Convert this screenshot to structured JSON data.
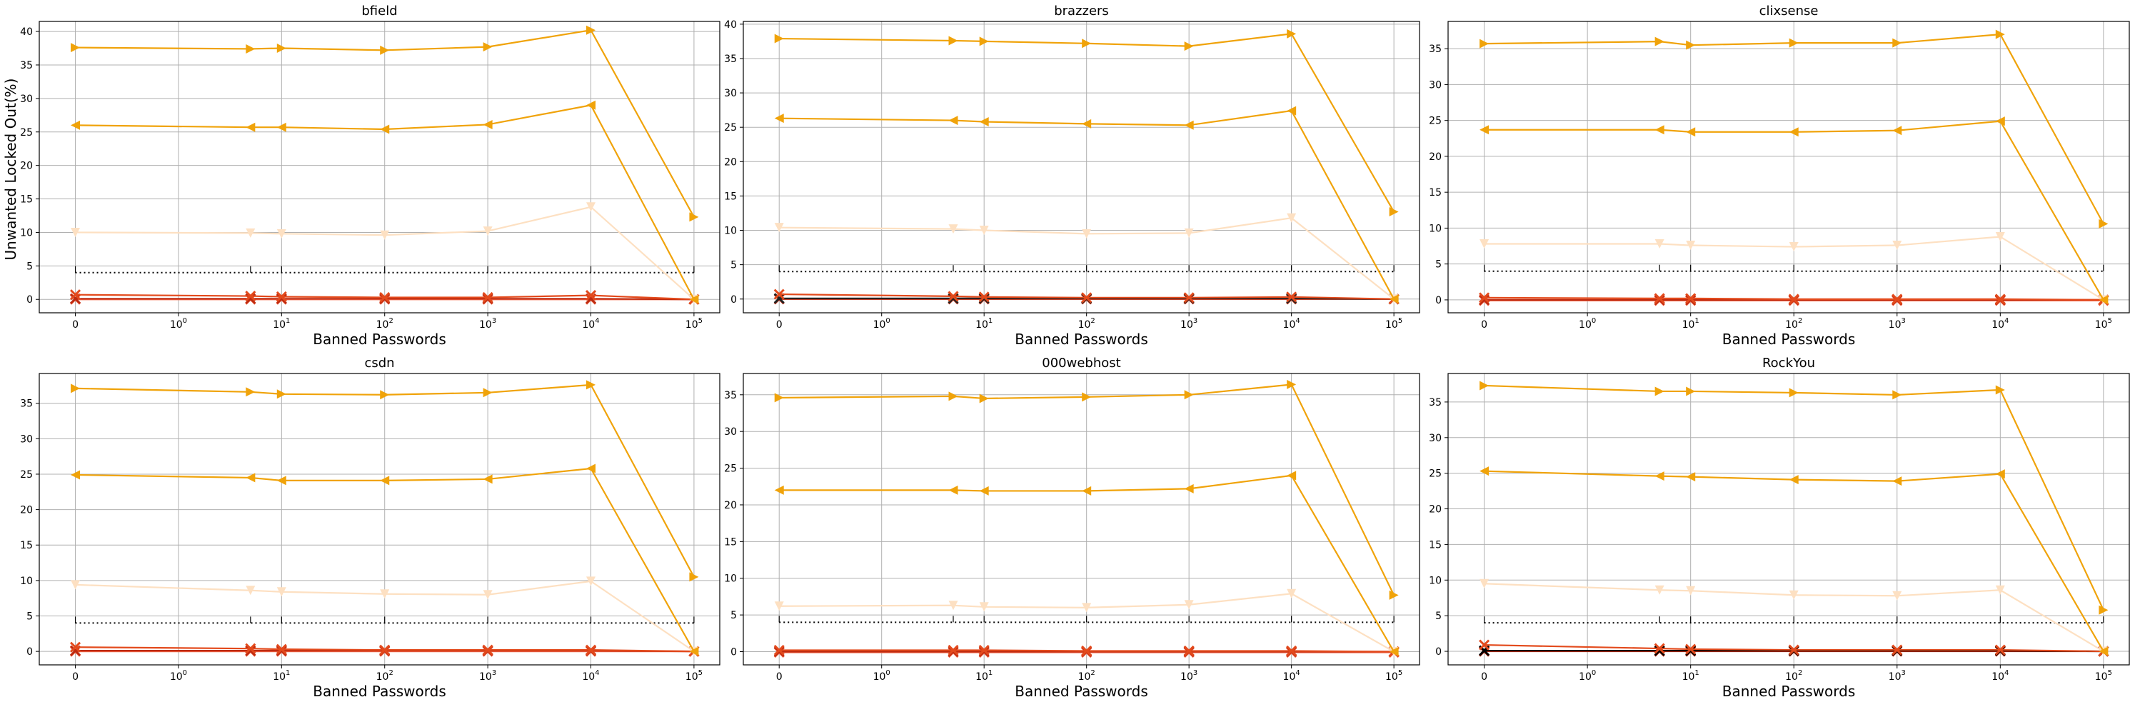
{
  "figure": {
    "ylabel": "Unwanted Locked Out(%)",
    "xlabel": "Banned Passwords"
  },
  "x_tick_labels": [
    "0",
    "10^0",
    "10^1",
    "10^2",
    "10^3",
    "10^4",
    "10^5"
  ],
  "chart_data": [
    {
      "type": "line",
      "title": "bfield",
      "xlabel": "Banned Passwords",
      "ylabel": "Unwanted Locked Out(%)",
      "xscale": "symlog",
      "x": [
        0,
        5,
        10,
        100,
        1000,
        10000,
        100000
      ],
      "ylim": [
        -2,
        41.5
      ],
      "yticks": [
        0,
        5,
        10,
        15,
        20,
        25,
        30,
        35,
        40
      ],
      "grid": true,
      "reference_line": {
        "y": 4,
        "style": "dotted",
        "color": "#000000"
      },
      "series": [
        {
          "values": [
            37.6,
            37.4,
            37.5,
            37.2,
            37.7,
            40.2,
            12.3
          ],
          "color": "#f0a30a",
          "marker": "triangle-right"
        },
        {
          "values": [
            26.0,
            25.7,
            25.7,
            25.4,
            26.1,
            29.0,
            0.0
          ],
          "color": "#f0a30a",
          "marker": "triangle-left"
        },
        {
          "values": [
            10.0,
            9.9,
            9.8,
            9.6,
            10.2,
            13.8,
            0.0
          ],
          "color": "#fde0c2",
          "marker": "triangle-down"
        },
        {
          "values": [
            0.7,
            0.5,
            0.4,
            0.3,
            0.3,
            0.6,
            0.0
          ],
          "color": "#e34a1c",
          "marker": "x"
        },
        {
          "values": [
            0.1,
            0.1,
            0.1,
            0.1,
            0.1,
            0.1,
            0.0
          ],
          "color": "#bd2a10",
          "marker": "x"
        },
        {
          "values": [
            0.0,
            0.0,
            0.0,
            0.0,
            0.0,
            0.0,
            0.0
          ],
          "color": "#f46a4a",
          "marker": "x"
        }
      ]
    },
    {
      "type": "line",
      "title": "brazzers",
      "xlabel": "Banned Passwords",
      "ylabel": "",
      "xscale": "symlog",
      "x": [
        0,
        5,
        10,
        100,
        1000,
        10000,
        100000
      ],
      "ylim": [
        -2,
        40.4
      ],
      "yticks": [
        0,
        5,
        10,
        15,
        20,
        25,
        30,
        35,
        40
      ],
      "grid": true,
      "reference_line": {
        "y": 4,
        "style": "dotted",
        "color": "#000000"
      },
      "series": [
        {
          "values": [
            37.9,
            37.6,
            37.5,
            37.2,
            36.8,
            38.6,
            12.7
          ],
          "color": "#f0a30a",
          "marker": "triangle-right"
        },
        {
          "values": [
            26.3,
            26.0,
            25.8,
            25.5,
            25.3,
            27.4,
            0.0
          ],
          "color": "#f0a30a",
          "marker": "triangle-left"
        },
        {
          "values": [
            10.4,
            10.2,
            10.0,
            9.5,
            9.6,
            11.8,
            0.0
          ],
          "color": "#fde0c2",
          "marker": "triangle-down"
        },
        {
          "values": [
            0.7,
            0.4,
            0.3,
            0.2,
            0.2,
            0.3,
            0.0
          ],
          "color": "#e34a1c",
          "marker": "x"
        },
        {
          "values": [
            0.1,
            0.1,
            0.1,
            0.1,
            0.1,
            0.1,
            0.0
          ],
          "color": "#222222",
          "marker": "x"
        },
        {
          "values": [
            0.0,
            0.0,
            0.0,
            0.0,
            0.0,
            0.0,
            0.0
          ],
          "color": "#bd2a10",
          "marker": "x"
        }
      ]
    },
    {
      "type": "line",
      "title": "clixsense",
      "xlabel": "Banned Passwords",
      "ylabel": "",
      "xscale": "symlog",
      "x": [
        0,
        5,
        10,
        100,
        1000,
        10000,
        100000
      ],
      "ylim": [
        -1.8,
        38.8
      ],
      "yticks": [
        0,
        5,
        10,
        15,
        20,
        25,
        30,
        35
      ],
      "grid": true,
      "reference_line": {
        "y": 4,
        "style": "dotted",
        "color": "#000000"
      },
      "series": [
        {
          "values": [
            35.7,
            36.0,
            35.5,
            35.8,
            35.8,
            37.0,
            10.6
          ],
          "color": "#f0a30a",
          "marker": "triangle-right"
        },
        {
          "values": [
            23.7,
            23.7,
            23.4,
            23.4,
            23.6,
            24.9,
            0.0
          ],
          "color": "#f0a30a",
          "marker": "triangle-left"
        },
        {
          "values": [
            7.8,
            7.8,
            7.6,
            7.4,
            7.6,
            8.8,
            0.0
          ],
          "color": "#fde0c2",
          "marker": "triangle-down"
        },
        {
          "values": [
            0.3,
            0.2,
            0.2,
            0.1,
            0.1,
            0.1,
            0.0
          ],
          "color": "#e34a1c",
          "marker": "x"
        },
        {
          "values": [
            0.0,
            0.0,
            0.0,
            0.0,
            0.0,
            0.0,
            0.0
          ],
          "color": "#bd2a10",
          "marker": "x"
        },
        {
          "values": [
            -0.1,
            -0.1,
            -0.1,
            -0.1,
            -0.1,
            -0.1,
            -0.1
          ],
          "color": "#f46a4a",
          "marker": "x"
        }
      ]
    },
    {
      "type": "line",
      "title": "csdn",
      "xlabel": "Banned Passwords",
      "ylabel": "",
      "xscale": "symlog",
      "x": [
        0,
        5,
        10,
        100,
        1000,
        10000,
        100000
      ],
      "ylim": [
        -1.9,
        39.2
      ],
      "yticks": [
        0,
        5,
        10,
        15,
        20,
        25,
        30,
        35
      ],
      "grid": true,
      "reference_line": {
        "y": 4,
        "style": "dotted",
        "color": "#000000"
      },
      "series": [
        {
          "values": [
            37.1,
            36.6,
            36.3,
            36.2,
            36.5,
            37.6,
            10.5
          ],
          "color": "#f0a30a",
          "marker": "triangle-right"
        },
        {
          "values": [
            24.9,
            24.5,
            24.1,
            24.1,
            24.3,
            25.8,
            0.0
          ],
          "color": "#f0a30a",
          "marker": "triangle-left"
        },
        {
          "values": [
            9.4,
            8.6,
            8.4,
            8.1,
            8.0,
            9.9,
            0.0
          ],
          "color": "#fde0c2",
          "marker": "triangle-down"
        },
        {
          "values": [
            0.6,
            0.4,
            0.3,
            0.2,
            0.2,
            0.2,
            0.0
          ],
          "color": "#e34a1c",
          "marker": "x"
        },
        {
          "values": [
            0.1,
            0.1,
            0.1,
            0.1,
            0.1,
            0.1,
            0.0
          ],
          "color": "#bd2a10",
          "marker": "x"
        },
        {
          "values": [
            0.0,
            0.0,
            0.0,
            0.0,
            0.0,
            0.0,
            0.0
          ],
          "color": "#f46a4a",
          "marker": "x"
        }
      ]
    },
    {
      "type": "line",
      "title": "000webhost",
      "xlabel": "Banned Passwords",
      "ylabel": "",
      "xscale": "symlog",
      "x": [
        0,
        5,
        10,
        100,
        1000,
        10000,
        100000
      ],
      "ylim": [
        -1.8,
        37.9
      ],
      "yticks": [
        0,
        5,
        10,
        15,
        20,
        25,
        30,
        35
      ],
      "grid": true,
      "reference_line": {
        "y": 4,
        "style": "dotted",
        "color": "#000000"
      },
      "series": [
        {
          "values": [
            34.6,
            34.8,
            34.5,
            34.7,
            35.0,
            36.4,
            7.7
          ],
          "color": "#f0a30a",
          "marker": "triangle-right"
        },
        {
          "values": [
            22.0,
            22.0,
            21.9,
            21.9,
            22.2,
            24.0,
            0.0
          ],
          "color": "#f0a30a",
          "marker": "triangle-left"
        },
        {
          "values": [
            6.2,
            6.3,
            6.1,
            6.0,
            6.4,
            7.9,
            0.0
          ],
          "color": "#fde0c2",
          "marker": "triangle-down"
        },
        {
          "values": [
            0.2,
            0.2,
            0.2,
            0.1,
            0.1,
            0.1,
            0.0
          ],
          "color": "#e34a1c",
          "marker": "x"
        },
        {
          "values": [
            0.0,
            0.0,
            0.0,
            0.0,
            0.0,
            0.0,
            0.0
          ],
          "color": "#bd2a10",
          "marker": "x"
        },
        {
          "values": [
            -0.1,
            -0.1,
            -0.1,
            -0.1,
            -0.1,
            -0.1,
            -0.1
          ],
          "color": "#f46a4a",
          "marker": "x"
        }
      ]
    },
    {
      "type": "line",
      "title": "RockYou",
      "xlabel": "Banned Passwords",
      "ylabel": "",
      "xscale": "symlog",
      "x": [
        0,
        5,
        10,
        100,
        1000,
        10000,
        100000
      ],
      "ylim": [
        -1.9,
        39.0
      ],
      "yticks": [
        0,
        5,
        10,
        15,
        20,
        25,
        30,
        35
      ],
      "grid": true,
      "reference_line": {
        "y": 4,
        "style": "dotted",
        "color": "#000000"
      },
      "series": [
        {
          "values": [
            37.3,
            36.5,
            36.5,
            36.3,
            36.0,
            36.7,
            5.8
          ],
          "color": "#f0a30a",
          "marker": "triangle-right"
        },
        {
          "values": [
            25.3,
            24.6,
            24.5,
            24.1,
            23.9,
            24.9,
            0.0
          ],
          "color": "#f0a30a",
          "marker": "triangle-left"
        },
        {
          "values": [
            9.5,
            8.6,
            8.5,
            7.9,
            7.8,
            8.6,
            0.0
          ],
          "color": "#fde0c2",
          "marker": "triangle-down"
        },
        {
          "values": [
            0.9,
            0.4,
            0.3,
            0.2,
            0.2,
            0.2,
            0.0
          ],
          "color": "#e34a1c",
          "marker": "x"
        },
        {
          "values": [
            0.1,
            0.1,
            0.1,
            0.1,
            0.1,
            0.1,
            0.0
          ],
          "color": "#000000",
          "marker": "x"
        },
        {
          "values": [
            0.0,
            0.0,
            0.0,
            0.0,
            0.0,
            0.0,
            0.0
          ],
          "color": "#bd2a10",
          "marker": "x"
        }
      ]
    }
  ]
}
